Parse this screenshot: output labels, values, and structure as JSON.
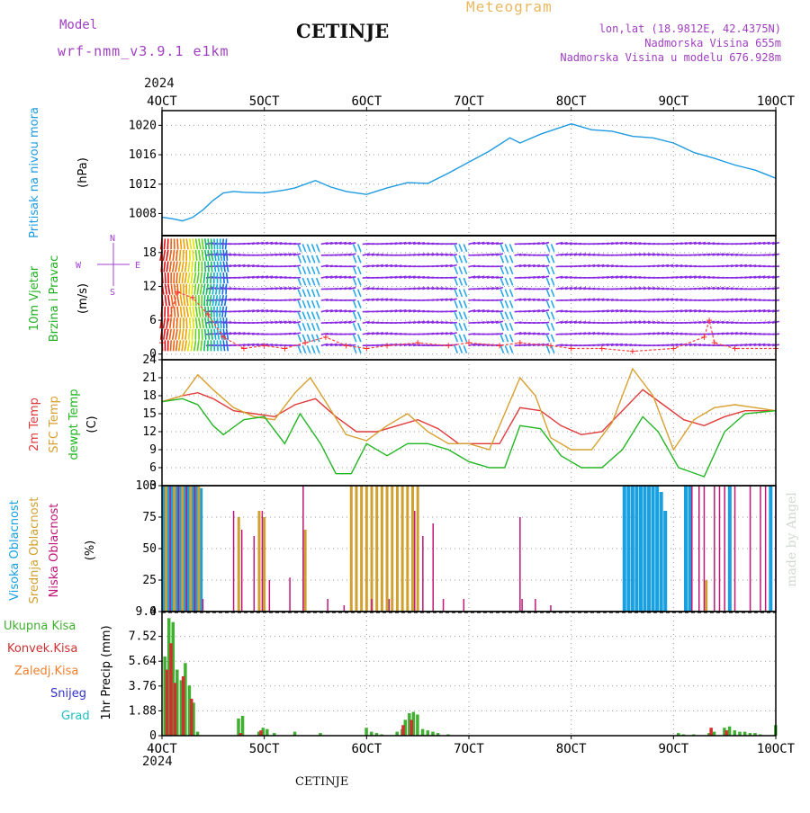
{
  "header": {
    "model_label": "Model",
    "model_name": "wrf-nmm_v3.9.1 e1km",
    "station": "CETINJE",
    "meteogram_label": "Meteogram",
    "lonlat": "lon,lat (18.9812E, 42.4375N)",
    "altitude": "Nadmorska Visina 655m",
    "model_altitude": "Nadmorska Visina u modelu 676.928m",
    "footer_station": "CETINJE",
    "credit": "made by Angel"
  },
  "time_axis": {
    "year": "2024",
    "ticks": [
      "4OCT",
      "5OCT",
      "6OCT",
      "7OCT",
      "8OCT",
      "9OCT",
      "10OCT"
    ]
  },
  "colors": {
    "pressure": "#1e9be0",
    "temp2m": "#e03a3a",
    "sfc_temp": "#d8a030",
    "dewpoint": "#22b622",
    "wind_label": "#20b020",
    "wind_dir_legend": "#a040d0",
    "high_cloud": "#18a0e0",
    "mid_cloud": "#d0a030",
    "low_cloud": "#c01878",
    "precip_total": "#40b030",
    "precip_conv": "#d03030",
    "precip_frz": "#f08030",
    "precip_snow": "#3030d0",
    "precip_grad": "#20c0c0",
    "header_purple": "#a040c0",
    "header_gold": "#e8b860"
  },
  "panels": {
    "pressure": {
      "labels": [
        "Pritisak na nivou mora",
        "(hPa)"
      ]
    },
    "wind": {
      "labels": [
        "10m Vjetar",
        "Brzina i Pravac",
        "(m/s)"
      ],
      "compass": {
        "north": "N",
        "west": "W",
        "east": "E",
        "south": "S"
      }
    },
    "temp": {
      "labels": [
        "2m Temp",
        "SFC Temp",
        "dewpt Temp",
        "(C)"
      ]
    },
    "cloud": {
      "labels": [
        "Visoka Oblacnost",
        "Srednja Oblacnost",
        "Niska Oblacnost",
        "(%)"
      ]
    },
    "precip": {
      "labels": [
        "Ukupna Kisa",
        "Konvek.Kisa",
        "Zaledj.Kisa",
        "Snijeg",
        "Grad",
        "1hr Precip (mm)"
      ]
    }
  },
  "chart_data": [
    {
      "type": "line",
      "name": "pressure",
      "x": [
        4.0,
        4.1,
        4.2,
        4.3,
        4.4,
        4.5,
        4.6,
        4.7,
        4.8,
        5.0,
        5.2,
        5.3,
        5.5,
        5.65,
        5.8,
        6.0,
        6.2,
        6.4,
        6.6,
        6.8,
        7.0,
        7.2,
        7.4,
        7.5,
        7.7,
        7.85,
        8.0,
        8.2,
        8.4,
        8.6,
        8.8,
        9.0,
        9.2,
        9.4,
        9.6,
        9.8,
        10.0
      ],
      "y": [
        1007.5,
        1007.3,
        1007.0,
        1007.5,
        1008.5,
        1009.8,
        1010.8,
        1011.0,
        1010.9,
        1010.8,
        1011.2,
        1011.5,
        1012.5,
        1011.6,
        1011.0,
        1010.6,
        1011.5,
        1012.2,
        1012.1,
        1013.5,
        1015.0,
        1016.5,
        1018.3,
        1017.6,
        1018.8,
        1019.5,
        1020.2,
        1019.4,
        1019.2,
        1018.5,
        1018.3,
        1017.6,
        1016.3,
        1015.5,
        1014.6,
        1013.9,
        1012.8
      ],
      "ylim": [
        1005,
        1022
      ],
      "yticks": [
        1008,
        1012,
        1016,
        1020
      ],
      "grid": true
    },
    {
      "type": "line",
      "name": "wind_speed",
      "x": [
        4.0,
        4.15,
        4.3,
        4.45,
        4.6,
        4.8,
        5.0,
        5.2,
        5.4,
        5.6,
        5.8,
        6.0,
        6.2,
        6.5,
        6.8,
        7.0,
        7.3,
        7.5,
        7.8,
        8.0,
        8.3,
        8.6,
        9.0,
        9.3,
        9.35,
        9.4,
        9.6,
        10.0
      ],
      "y": [
        2,
        11,
        10,
        7,
        3,
        1,
        1.5,
        1,
        2,
        3,
        1.5,
        1,
        1.5,
        2,
        1.5,
        2,
        1.5,
        2,
        1.5,
        1,
        1,
        0.5,
        1,
        3,
        6,
        2,
        1,
        1
      ],
      "ylim": [
        -1,
        21
      ],
      "yticks": [
        0,
        6,
        12,
        18
      ],
      "grid": true
    },
    {
      "type": "line",
      "name": "temperature",
      "yticks": [
        3,
        6,
        9,
        12,
        15,
        18,
        21,
        24
      ],
      "ylim": [
        3,
        24
      ],
      "grid": true,
      "series": [
        {
          "name": "2m Temp",
          "x": [
            4.0,
            4.2,
            4.35,
            4.5,
            4.7,
            4.9,
            5.1,
            5.3,
            5.5,
            5.7,
            5.9,
            6.1,
            6.3,
            6.5,
            6.7,
            6.9,
            7.1,
            7.3,
            7.5,
            7.7,
            7.9,
            8.1,
            8.3,
            8.5,
            8.7,
            8.9,
            9.1,
            9.3,
            9.5,
            9.7,
            10.0
          ],
          "y": [
            17,
            18,
            18.5,
            17.5,
            15.5,
            15,
            14.5,
            16.5,
            17.5,
            14.5,
            12,
            12,
            13,
            14,
            12.5,
            10,
            10,
            10,
            16,
            15.5,
            13,
            11.5,
            12,
            15.5,
            19,
            16.5,
            14,
            13,
            14.5,
            15.5,
            15.5
          ]
        },
        {
          "name": "SFC Temp",
          "x": [
            4.0,
            4.2,
            4.35,
            4.5,
            4.7,
            4.9,
            5.1,
            5.3,
            5.45,
            5.6,
            5.8,
            6.0,
            6.2,
            6.4,
            6.6,
            6.8,
            7.0,
            7.2,
            7.5,
            7.65,
            7.8,
            8.0,
            8.2,
            8.4,
            8.6,
            8.8,
            9.0,
            9.2,
            9.4,
            9.6,
            9.8,
            10.0
          ],
          "y": [
            17,
            18,
            21.5,
            19,
            16,
            14.5,
            14,
            18.5,
            21,
            17,
            11.5,
            10.5,
            13,
            15,
            12,
            10,
            10,
            9,
            21,
            18,
            11,
            9,
            9,
            13.5,
            22.5,
            18,
            9,
            14,
            16,
            16.5,
            16,
            15.5
          ]
        },
        {
          "name": "dewpt Temp",
          "x": [
            4.0,
            4.2,
            4.35,
            4.5,
            4.6,
            4.8,
            5.0,
            5.2,
            5.35,
            5.55,
            5.7,
            5.85,
            6.0,
            6.2,
            6.4,
            6.6,
            6.8,
            7.0,
            7.2,
            7.35,
            7.5,
            7.7,
            7.9,
            8.1,
            8.3,
            8.5,
            8.7,
            8.85,
            9.05,
            9.3,
            9.5,
            9.7,
            10.0
          ],
          "y": [
            17,
            17.5,
            16.5,
            13,
            11.5,
            14,
            14.5,
            10,
            15,
            10,
            5,
            5,
            10,
            8,
            10,
            10,
            9,
            7,
            6,
            6,
            13,
            12.5,
            8,
            6,
            6,
            9,
            14.5,
            12,
            6,
            4.5,
            12,
            15,
            15.5
          ]
        }
      ]
    },
    {
      "type": "bar",
      "name": "cloud_cover",
      "ylim": [
        0,
        100
      ],
      "yticks": [
        0,
        25,
        50,
        75,
        100
      ],
      "grid": true,
      "series": [
        {
          "name": "Visoka Oblacnost",
          "x": [
            4.02,
            4.06,
            4.1,
            4.14,
            4.18,
            4.22,
            4.26,
            4.3,
            4.34,
            4.38,
            8.52,
            8.56,
            8.6,
            8.64,
            8.68,
            8.72,
            8.76,
            8.8,
            8.84,
            8.88,
            8.92,
            9.12,
            9.16,
            9.55,
            9.95
          ],
          "y": [
            100,
            100,
            100,
            100,
            100,
            100,
            100,
            100,
            100,
            98,
            100,
            100,
            100,
            100,
            100,
            100,
            100,
            100,
            100,
            95,
            80,
            100,
            100,
            100,
            100
          ]
        },
        {
          "name": "Srednja Oblacnost",
          "x": [
            4.04,
            4.12,
            4.2,
            4.28,
            4.36,
            4.75,
            4.95,
            5.0,
            5.4,
            5.85,
            5.9,
            5.95,
            6.0,
            6.05,
            6.1,
            6.15,
            6.2,
            6.25,
            6.3,
            6.35,
            6.4,
            6.45,
            6.5,
            9.32
          ],
          "y": [
            100,
            100,
            100,
            100,
            100,
            75,
            80,
            75,
            65,
            100,
            100,
            100,
            100,
            100,
            100,
            100,
            100,
            100,
            100,
            100,
            100,
            100,
            100,
            25
          ]
        },
        {
          "name": "Niska Oblacnost",
          "x": [
            4.08,
            4.16,
            4.24,
            4.32,
            4.4,
            4.7,
            4.78,
            4.9,
            4.98,
            5.05,
            5.25,
            5.38,
            5.62,
            5.78,
            6.05,
            6.22,
            6.47,
            6.55,
            6.65,
            6.75,
            6.95,
            7.5,
            7.52,
            7.65,
            7.8,
            9.18,
            9.25,
            9.3,
            9.4,
            9.45,
            9.5,
            9.6,
            9.75,
            9.85,
            9.9,
            10.0
          ],
          "y": [
            100,
            100,
            100,
            100,
            10,
            80,
            65,
            60,
            80,
            25,
            27,
            100,
            10,
            5,
            10,
            10,
            80,
            60,
            70,
            10,
            10,
            75,
            10,
            10,
            5,
            100,
            100,
            100,
            100,
            100,
            100,
            100,
            100,
            100,
            100,
            100
          ]
        }
      ]
    },
    {
      "type": "bar",
      "name": "precipitation",
      "ylim": [
        0,
        9.4
      ],
      "yticks": [
        0,
        1.88,
        3.76,
        5.64,
        7.52,
        9.4
      ],
      "ytick_labels": [
        "0",
        "1.88",
        "3.76",
        "5.64",
        "7.52",
        "9.4"
      ],
      "grid": true,
      "series": [
        {
          "name": "Ukupna Kisa",
          "x": [
            4.03,
            4.07,
            4.11,
            4.15,
            4.19,
            4.23,
            4.27,
            4.31,
            4.35,
            4.75,
            4.79,
            4.95,
            4.99,
            5.03,
            5.1,
            5.3,
            5.55,
            6.0,
            6.05,
            6.1,
            6.15,
            6.3,
            6.35,
            6.38,
            6.42,
            6.46,
            6.5,
            6.55,
            6.6,
            6.65,
            6.7,
            6.8,
            9.05,
            9.1,
            9.2,
            9.35,
            9.4,
            9.5,
            9.55,
            9.6,
            9.65,
            9.7,
            9.75,
            9.8,
            9.85,
            10.0
          ],
          "y": [
            6.0,
            8.9,
            8.6,
            5.0,
            4.2,
            5.5,
            3.8,
            2.5,
            0.3,
            1.3,
            1.5,
            0.3,
            0.6,
            0.5,
            0.2,
            0.3,
            0.2,
            0.6,
            0.3,
            0.2,
            0.1,
            0.3,
            0.5,
            1.2,
            1.7,
            1.8,
            1.6,
            0.5,
            0.4,
            0.3,
            0.2,
            0.1,
            0.2,
            0.1,
            0.1,
            0.2,
            0.3,
            0.6,
            0.7,
            0.4,
            0.3,
            0.3,
            0.2,
            0.2,
            0.1,
            0.8
          ]
        },
        {
          "name": "Konvek.Kisa",
          "x": [
            4.05,
            4.09,
            4.13,
            4.21,
            4.29,
            4.77,
            4.97,
            6.36,
            6.44,
            9.37,
            9.52
          ],
          "y": [
            5.0,
            7.0,
            4.0,
            4.5,
            2.8,
            0.2,
            0.4,
            0.8,
            1.2,
            0.6,
            0.4
          ]
        }
      ]
    }
  ]
}
